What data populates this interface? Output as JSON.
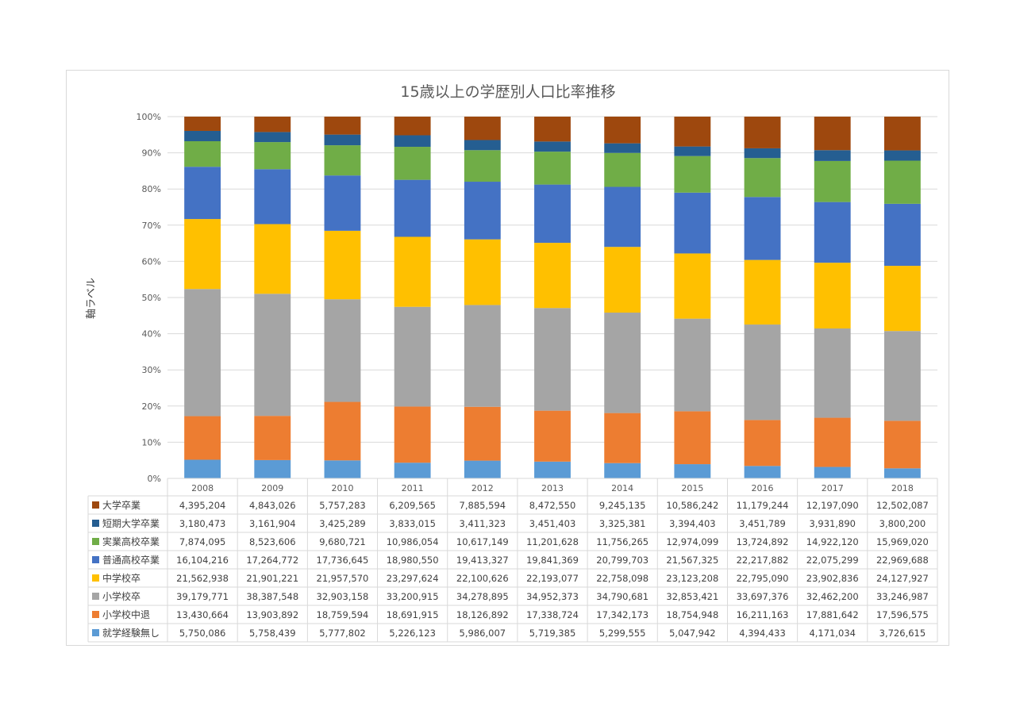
{
  "chart_data": {
    "type": "bar",
    "stacked": "percent",
    "title": "15歳以上の学歴別人口比率推移",
    "ylabel": "軸ラベル",
    "xlabel": "",
    "ylim": [
      0,
      100
    ],
    "y_ticks": [
      "0%",
      "10%",
      "20%",
      "30%",
      "40%",
      "50%",
      "60%",
      "70%",
      "80%",
      "90%",
      "100%"
    ],
    "grid": true,
    "legend": "data-table",
    "categories": [
      "2008",
      "2009",
      "2010",
      "2011",
      "2012",
      "2013",
      "2014",
      "2015",
      "2016",
      "2017",
      "2018"
    ],
    "series": [
      {
        "name": "就学経験無し",
        "color": "#5b9bd5",
        "values": [
          5750086,
          5758439,
          5777802,
          5226123,
          5986007,
          5719385,
          5299555,
          5047942,
          4394433,
          4171034,
          3726615
        ],
        "labels": [
          "5,750,086",
          "5,758,439",
          "5,777,802",
          "5,226,123",
          "5,986,007",
          "5,719,385",
          "5,299,555",
          "5,047,942",
          "4,394,433",
          "4,171,034",
          "3,726,615"
        ]
      },
      {
        "name": "小学校中退",
        "color": "#ed7d31",
        "values": [
          13430664,
          13903892,
          18759594,
          18691915,
          18126892,
          17338724,
          17342173,
          18754948,
          16211163,
          17881642,
          17596575
        ],
        "labels": [
          "13,430,664",
          "13,903,892",
          "18,759,594",
          "18,691,915",
          "18,126,892",
          "17,338,724",
          "17,342,173",
          "18,754,948",
          "16,211,163",
          "17,881,642",
          "17,596,575"
        ]
      },
      {
        "name": "小学校卒",
        "color": "#a5a5a5",
        "values": [
          39179771,
          38387548,
          32903158,
          33200915,
          34278895,
          34952373,
          34790681,
          32853421,
          33697376,
          32462200,
          33246987
        ],
        "labels": [
          "39,179,771",
          "38,387,548",
          "32,903,158",
          "33,200,915",
          "34,278,895",
          "34,952,373",
          "34,790,681",
          "32,853,421",
          "33,697,376",
          "32,462,200",
          "33,246,987"
        ]
      },
      {
        "name": "中学校卒",
        "color": "#ffc000",
        "values": [
          21562938,
          21901221,
          21957570,
          23297624,
          22100626,
          22193077,
          22758098,
          23123208,
          22795090,
          23902836,
          24127927
        ],
        "labels": [
          "21,562,938",
          "21,901,221",
          "21,957,570",
          "23,297,624",
          "22,100,626",
          "22,193,077",
          "22,758,098",
          "23,123,208",
          "22,795,090",
          "23,902,836",
          "24,127,927"
        ]
      },
      {
        "name": "普通高校卒業",
        "color": "#4472c4",
        "values": [
          16104216,
          17264772,
          17736645,
          18980550,
          19413327,
          19841369,
          20799703,
          21567325,
          22217882,
          22075299,
          22969688
        ],
        "labels": [
          "16,104,216",
          "17,264,772",
          "17,736,645",
          "18,980,550",
          "19,413,327",
          "19,841,369",
          "20,799,703",
          "21,567,325",
          "22,217,882",
          "22,075,299",
          "22,969,688"
        ]
      },
      {
        "name": "実業高校卒業",
        "color": "#70ad47",
        "values": [
          7874095,
          8523606,
          9680721,
          10986054,
          10617149,
          11201628,
          11756265,
          12974099,
          13724892,
          14922120,
          15969020
        ],
        "labels": [
          "7,874,095",
          "8,523,606",
          "9,680,721",
          "10,986,054",
          "10,617,149",
          "11,201,628",
          "11,756,265",
          "12,974,099",
          "13,724,892",
          "14,922,120",
          "15,969,020"
        ]
      },
      {
        "name": "短期大学卒業",
        "color": "#255e91",
        "values": [
          3180473,
          3161904,
          3425289,
          3833015,
          3411323,
          3451403,
          3325381,
          3394403,
          3451789,
          3931890,
          3800200
        ],
        "labels": [
          "3,180,473",
          "3,161,904",
          "3,425,289",
          "3,833,015",
          "3,411,323",
          "3,451,403",
          "3,325,381",
          "3,394,403",
          "3,451,789",
          "3,931,890",
          "3,800,200"
        ]
      },
      {
        "name": "大学卒業",
        "color": "#9e480e",
        "values": [
          4395204,
          4843026,
          5757283,
          6209565,
          7885594,
          8472550,
          9245135,
          10586242,
          11179244,
          12197090,
          12502087
        ],
        "labels": [
          "4,395,204",
          "4,843,026",
          "5,757,283",
          "6,209,565",
          "7,885,594",
          "8,472,550",
          "9,245,135",
          "10,586,242",
          "11,179,244",
          "12,197,090",
          "12,502,087"
        ]
      }
    ],
    "table_row_order": [
      "大学卒業",
      "短期大学卒業",
      "実業高校卒業",
      "普通高校卒業",
      "中学校卒",
      "小学校卒",
      "小学校中退",
      "就学経験無し"
    ]
  }
}
